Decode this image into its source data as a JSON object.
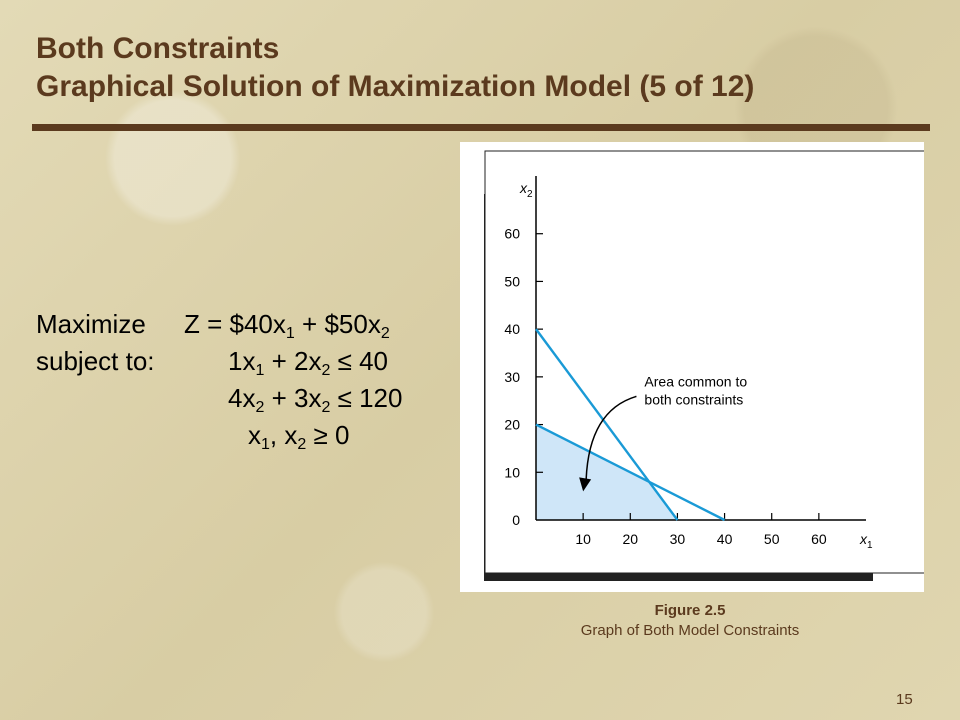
{
  "slide": {
    "title_line1": "Both Constraints",
    "title_line2": "Graphical Solution of Maximization Model (5 of 12)",
    "page_number": "15",
    "colors": {
      "title": "#5b3a1e",
      "line": "#1a9ad6",
      "region": "#cfe6f8"
    }
  },
  "model": {
    "objective_label": "Maximize",
    "objective_text": "Z = $40x",
    "objective_mid": " + $50x",
    "subject_label": "subject to:",
    "c1_a": "1x",
    "c1_b": " + 2x",
    "c1_c": " ≤ 40",
    "c2_a": "4x",
    "c2_b": " + 3x",
    "c2_c": " ≤ 120",
    "c3_a": "x",
    "c3_b": ", x",
    "c3_c": " ≥ 0",
    "sub1": "1",
    "sub2": "2"
  },
  "figure": {
    "number": "Figure 2.5",
    "title": "Graph of Both Model Constraints"
  },
  "chart_data": {
    "type": "line",
    "xlabel": "x1",
    "ylabel": "x2",
    "xlim": [
      0,
      70
    ],
    "ylim": [
      0,
      70
    ],
    "x_ticks": [
      10,
      20,
      30,
      40,
      50,
      60
    ],
    "y_ticks": [
      0,
      10,
      20,
      30,
      40,
      50,
      60
    ],
    "series": [
      {
        "values": [
          [
            0,
            40
          ],
          [
            30,
            0
          ]
        ]
      },
      {
        "values": [
          [
            0,
            20
          ],
          [
            40,
            0
          ]
        ]
      }
    ],
    "feasible_region": [
      [
        0,
        0
      ],
      [
        0,
        20
      ],
      [
        24,
        8
      ],
      [
        30,
        0
      ]
    ],
    "annotation": {
      "line1": "Area common to",
      "line2": "both constraints",
      "text_at": [
        23,
        28
      ],
      "arrow_to": [
        10,
        6
      ]
    },
    "grid": false
  }
}
